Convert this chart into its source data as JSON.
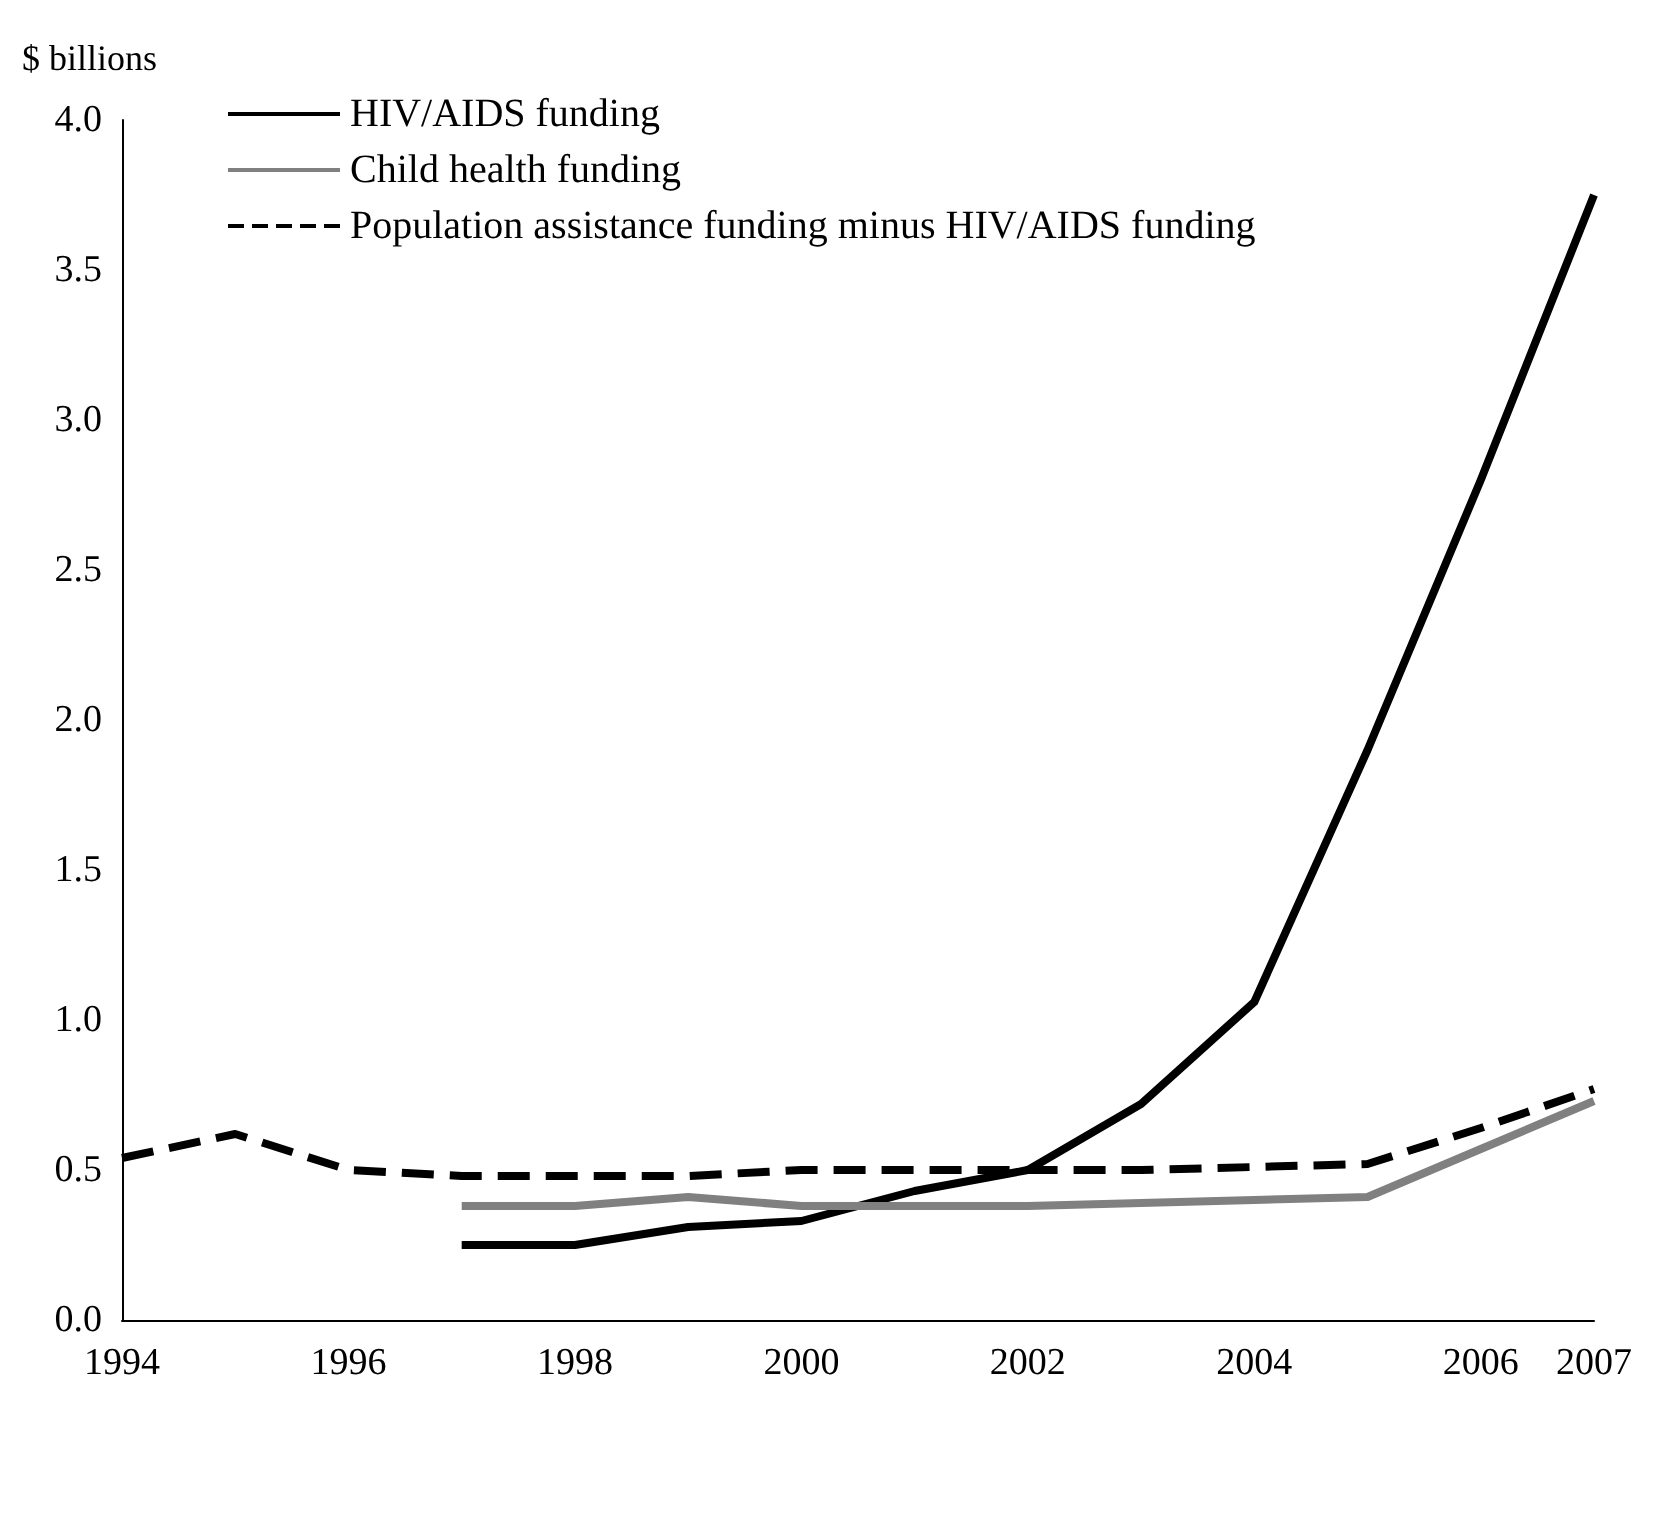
{
  "chart_data": {
    "type": "line",
    "ylabel": "$ billions",
    "x": [
      1994,
      1995,
      1996,
      1997,
      1998,
      1999,
      2000,
      2001,
      2002,
      2003,
      2004,
      2005,
      2006,
      2007
    ],
    "xlim": [
      1994,
      2007
    ],
    "xticks": [
      1994,
      1996,
      1998,
      2000,
      2002,
      2004,
      2006,
      2007
    ],
    "ylim": [
      0,
      4
    ],
    "yticks": [
      {
        "value": 0,
        "label": "0.0"
      },
      0.5,
      {
        "value": 1,
        "label": "1.0"
      },
      1.5,
      {
        "value": 2,
        "label": "2.0"
      },
      2.5,
      {
        "value": 3,
        "label": "3.0"
      },
      3.5,
      {
        "value": 4,
        "label": "4.0"
      }
    ],
    "grid": false,
    "legend": "top left",
    "marker": "none",
    "series": [
      {
        "name": "HIV/AIDS funding",
        "color": "#000000",
        "line_style": "solid",
        "values": [
          null,
          null,
          null,
          0.25,
          0.25,
          0.31,
          0.33,
          0.43,
          0.5,
          0.72,
          1.06,
          1.9,
          2.8,
          3.75
        ]
      },
      {
        "name": "Child health funding",
        "color": "#808080",
        "line_style": "solid",
        "values": [
          null,
          null,
          null,
          0.38,
          0.38,
          0.41,
          0.38,
          0.38,
          0.38,
          0.39,
          0.4,
          0.41,
          0.57,
          0.73
        ]
      },
      {
        "name": "Population assistance funding minus HIV/AIDS funding",
        "color": "#000000",
        "line_style": "dashed",
        "values": [
          0.54,
          0.62,
          0.5,
          0.48,
          0.48,
          0.48,
          0.5,
          0.5,
          0.5,
          0.5,
          0.51,
          0.52,
          0.64,
          0.77
        ]
      }
    ]
  }
}
